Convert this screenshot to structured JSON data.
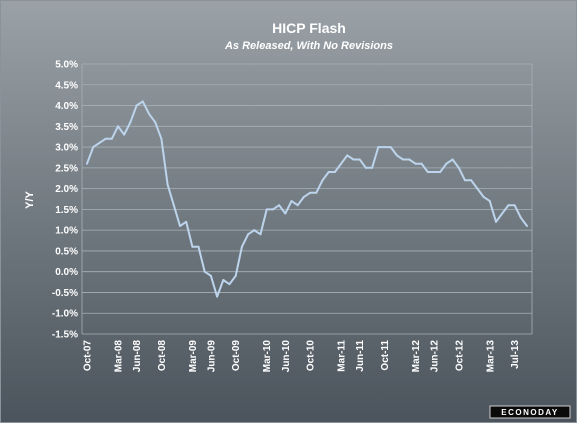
{
  "chart_data": {
    "type": "line",
    "title": "HICP Flash",
    "subtitle": "As Released, With No Revisions",
    "ylabel": "Y/Y",
    "xlabel": "",
    "ylim": [
      -1.5,
      5.0
    ],
    "y_ticks": [
      "5.0%",
      "4.5%",
      "4.0%",
      "3.5%",
      "3.0%",
      "2.5%",
      "2.0%",
      "1.5%",
      "1.0%",
      "0.5%",
      "0.0%",
      "-0.5%",
      "-1.0%",
      "-1.5%"
    ],
    "x_ticks": [
      {
        "label": "Oct-07",
        "index": 0
      },
      {
        "label": "Mar-08",
        "index": 5
      },
      {
        "label": "Jun-08",
        "index": 8
      },
      {
        "label": "Oct-08",
        "index": 12
      },
      {
        "label": "Mar-09",
        "index": 17
      },
      {
        "label": "Jun-09",
        "index": 20
      },
      {
        "label": "Oct-09",
        "index": 24
      },
      {
        "label": "Mar-10",
        "index": 29
      },
      {
        "label": "Jun-10",
        "index": 32
      },
      {
        "label": "Oct-10",
        "index": 36
      },
      {
        "label": "Mar-11",
        "index": 41
      },
      {
        "label": "Jun-11",
        "index": 44
      },
      {
        "label": "Oct-11",
        "index": 48
      },
      {
        "label": "Mar-12",
        "index": 53
      },
      {
        "label": "Jun-12",
        "index": 56
      },
      {
        "label": "Oct-12",
        "index": 60
      },
      {
        "label": "Mar-13",
        "index": 65
      },
      {
        "label": "Jul-13",
        "index": 69
      }
    ],
    "grid": true,
    "series": [
      {
        "values": [
          2.6,
          3.0,
          3.1,
          3.2,
          3.2,
          3.5,
          3.3,
          3.6,
          4.0,
          4.1,
          3.8,
          3.6,
          3.2,
          2.1,
          1.6,
          1.1,
          1.2,
          0.6,
          0.6,
          0.0,
          -0.1,
          -0.6,
          -0.2,
          -0.3,
          -0.1,
          0.6,
          0.9,
          1.0,
          0.9,
          1.5,
          1.5,
          1.6,
          1.4,
          1.7,
          1.6,
          1.8,
          1.9,
          1.9,
          2.2,
          2.4,
          2.4,
          2.6,
          2.8,
          2.7,
          2.7,
          2.5,
          2.5,
          3.0,
          3.0,
          3.0,
          2.8,
          2.7,
          2.7,
          2.6,
          2.6,
          2.4,
          2.4,
          2.4,
          2.6,
          2.7,
          2.5,
          2.2,
          2.2,
          2.0,
          1.8,
          1.7,
          1.2,
          1.4,
          1.6,
          1.6,
          1.3,
          1.1
        ]
      }
    ]
  },
  "branding": {
    "logo_text": "ECONODAY"
  },
  "colors": {
    "background_top": "#959ca2",
    "background_bottom": "#4f5860",
    "line": "#bcd4ec",
    "grid": "#a8b0b7",
    "text": "#ffffff"
  }
}
